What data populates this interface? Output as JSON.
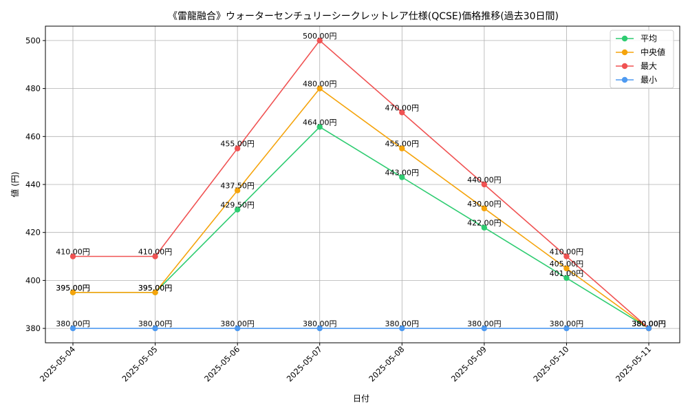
{
  "chart_data": {
    "type": "line",
    "title": "《雷龍融合》ウォーターセンチュリーシークレットレア仕様(QCSE)価格推移(過去30日間)",
    "xlabel": "日付",
    "ylabel": "値 (円)",
    "categories": [
      "2025-05-04",
      "2025-05-05",
      "2025-05-06",
      "2025-05-07",
      "2025-05-08",
      "2025-05-09",
      "2025-05-10",
      "2025-05-11"
    ],
    "ylim": [
      374,
      506
    ],
    "yticks": [
      380,
      400,
      420,
      440,
      460,
      480,
      500
    ],
    "grid": true,
    "legend_position": "top-right",
    "value_suffix": "円",
    "series": [
      {
        "name": "平均",
        "color": "#2ecc71",
        "values": [
          395,
          395,
          429.5,
          464,
          443,
          422,
          401,
          380
        ]
      },
      {
        "name": "中央値",
        "color": "#f5a40c",
        "values": [
          395,
          395,
          437.5,
          480,
          455,
          430,
          405,
          380
        ]
      },
      {
        "name": "最大",
        "color": "#f05252",
        "values": [
          410,
          410,
          455,
          500,
          470,
          440,
          410,
          380
        ]
      },
      {
        "name": "最小",
        "color": "#4e9af1",
        "values": [
          380,
          380,
          380,
          380,
          380,
          380,
          380,
          380
        ]
      }
    ]
  }
}
